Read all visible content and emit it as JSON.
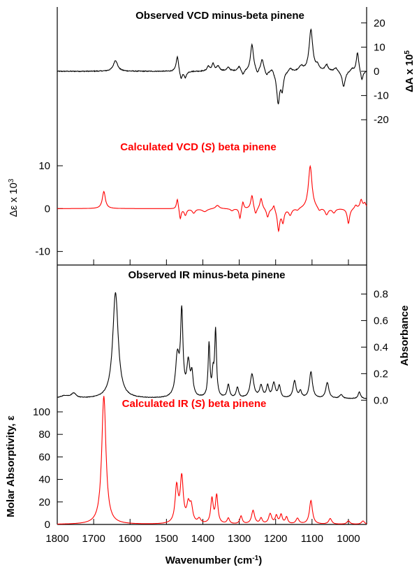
{
  "chart_data": [
    {
      "id": "vcd-observed",
      "type": "line",
      "title": "Observed VCD minus-beta pinene",
      "ylabel": "ΔA x 10⁵",
      "ylabel_parts": {
        "main": "ΔA x 10",
        "sup": "5"
      },
      "ylabel_side": "right",
      "xlim": [
        1800,
        950
      ],
      "ylim": [
        -26,
        26
      ],
      "yticks": [
        20,
        10,
        0,
        -10,
        -20
      ],
      "color": "#000000",
      "baseline": 0,
      "noise": 0.35,
      "x_smooth_peaks": [
        {
          "x": 1640,
          "y": 4.5,
          "w": 7
        },
        {
          "x": 1470,
          "y": 6.5,
          "w": 4
        },
        {
          "x": 1460,
          "y": -3.5,
          "w": 4
        },
        {
          "x": 1448,
          "y": -2.5,
          "w": 4
        },
        {
          "x": 1385,
          "y": 2,
          "w": 4
        },
        {
          "x": 1372,
          "y": 3,
          "w": 4
        },
        {
          "x": 1358,
          "y": 2,
          "w": 5
        },
        {
          "x": 1330,
          "y": 1.5,
          "w": 5
        },
        {
          "x": 1300,
          "y": 2,
          "w": 5
        },
        {
          "x": 1290,
          "y": -2,
          "w": 4
        },
        {
          "x": 1265,
          "y": 11,
          "w": 5
        },
        {
          "x": 1250,
          "y": -2,
          "w": 4
        },
        {
          "x": 1237,
          "y": 5,
          "w": 5
        },
        {
          "x": 1225,
          "y": -2,
          "w": 4
        },
        {
          "x": 1210,
          "y": 1.5,
          "w": 4
        },
        {
          "x": 1193,
          "y": -13,
          "w": 5
        },
        {
          "x": 1182,
          "y": -7,
          "w": 4
        },
        {
          "x": 1160,
          "y": 1.5,
          "w": 5
        },
        {
          "x": 1130,
          "y": 2,
          "w": 6
        },
        {
          "x": 1103,
          "y": 17,
          "w": 6
        },
        {
          "x": 1085,
          "y": 2,
          "w": 5
        },
        {
          "x": 1060,
          "y": 2.5,
          "w": 5
        },
        {
          "x": 1035,
          "y": 1.5,
          "w": 5
        },
        {
          "x": 1013,
          "y": -6.5,
          "w": 5
        },
        {
          "x": 990,
          "y": 1,
          "w": 5
        },
        {
          "x": 975,
          "y": 8,
          "w": 4
        },
        {
          "x": 963,
          "y": -4,
          "w": 4
        }
      ]
    },
    {
      "id": "vcd-calculated",
      "type": "line",
      "title": "Calculated VCD (S) beta pinene",
      "title_parts": {
        "pre": "Calculated VCD (",
        "italic": "S",
        "post": ") beta pinene"
      },
      "ylabel": "Δε x 10³",
      "ylabel_parts": {
        "main": "Δε x 10",
        "sup": "3"
      },
      "ylabel_side": "left",
      "xlim": [
        1800,
        950
      ],
      "ylim": [
        -13,
        18
      ],
      "yticks": [
        10,
        0,
        -10
      ],
      "color": "#ff0000",
      "baseline": 0,
      "noise": 0,
      "x_smooth_peaks": [
        {
          "x": 1672,
          "y": 4,
          "w": 5
        },
        {
          "x": 1470,
          "y": 2.5,
          "w": 3
        },
        {
          "x": 1462,
          "y": -2.5,
          "w": 3
        },
        {
          "x": 1448,
          "y": -1.5,
          "w": 4
        },
        {
          "x": 1425,
          "y": -1,
          "w": 5
        },
        {
          "x": 1395,
          "y": -0.7,
          "w": 8
        },
        {
          "x": 1360,
          "y": 0.8,
          "w": 6
        },
        {
          "x": 1320,
          "y": -0.5,
          "w": 5
        },
        {
          "x": 1298,
          "y": -2.5,
          "w": 3
        },
        {
          "x": 1290,
          "y": 1.8,
          "w": 3
        },
        {
          "x": 1265,
          "y": 3.2,
          "w": 4
        },
        {
          "x": 1255,
          "y": -1.6,
          "w": 4
        },
        {
          "x": 1240,
          "y": 2.5,
          "w": 4
        },
        {
          "x": 1222,
          "y": -2,
          "w": 4
        },
        {
          "x": 1205,
          "y": 1.2,
          "w": 3
        },
        {
          "x": 1192,
          "y": -5,
          "w": 4
        },
        {
          "x": 1180,
          "y": -3,
          "w": 4
        },
        {
          "x": 1160,
          "y": -1.5,
          "w": 5
        },
        {
          "x": 1140,
          "y": -0.5,
          "w": 5
        },
        {
          "x": 1105,
          "y": 10,
          "w": 6
        },
        {
          "x": 1080,
          "y": -0.8,
          "w": 5
        },
        {
          "x": 1060,
          "y": -1.5,
          "w": 5
        },
        {
          "x": 1040,
          "y": -1,
          "w": 5
        },
        {
          "x": 1000,
          "y": -3.5,
          "w": 4
        },
        {
          "x": 980,
          "y": 0.8,
          "w": 4
        },
        {
          "x": 965,
          "y": 2,
          "w": 4
        },
        {
          "x": 955,
          "y": 1.2,
          "w": 4
        }
      ]
    },
    {
      "id": "ir-observed",
      "type": "line",
      "title": "Observed IR minus-beta pinene",
      "ylabel": "Absorbance",
      "ylabel_side": "right",
      "xlim": [
        1800,
        950
      ],
      "ylim": [
        -0.03,
        0.95
      ],
      "yticks": [
        0.8,
        0.6,
        0.4,
        0.2,
        0.0
      ],
      "ytick_labels": [
        "0.8",
        "0.6",
        "0.4",
        "0.2",
        "0.0"
      ],
      "color": "#000000",
      "baseline": 0.01,
      "noise": 0.004,
      "x_smooth_peaks": [
        {
          "x": 1780,
          "y": 0.02,
          "w": 15
        },
        {
          "x": 1755,
          "y": 0.035,
          "w": 8
        },
        {
          "x": 1640,
          "y": 0.8,
          "w": 9
        },
        {
          "x": 1470,
          "y": 0.3,
          "w": 6
        },
        {
          "x": 1458,
          "y": 0.62,
          "w": 4
        },
        {
          "x": 1440,
          "y": 0.25,
          "w": 5
        },
        {
          "x": 1430,
          "y": 0.16,
          "w": 4
        },
        {
          "x": 1383,
          "y": 0.4,
          "w": 3
        },
        {
          "x": 1372,
          "y": 0.16,
          "w": 3
        },
        {
          "x": 1365,
          "y": 0.5,
          "w": 3
        },
        {
          "x": 1330,
          "y": 0.1,
          "w": 4
        },
        {
          "x": 1305,
          "y": 0.08,
          "w": 4
        },
        {
          "x": 1265,
          "y": 0.18,
          "w": 6
        },
        {
          "x": 1240,
          "y": 0.09,
          "w": 5
        },
        {
          "x": 1222,
          "y": 0.09,
          "w": 4
        },
        {
          "x": 1205,
          "y": 0.11,
          "w": 5
        },
        {
          "x": 1190,
          "y": 0.09,
          "w": 4
        },
        {
          "x": 1148,
          "y": 0.13,
          "w": 5
        },
        {
          "x": 1132,
          "y": 0.05,
          "w": 4
        },
        {
          "x": 1103,
          "y": 0.2,
          "w": 5
        },
        {
          "x": 1058,
          "y": 0.12,
          "w": 5
        },
        {
          "x": 1020,
          "y": 0.03,
          "w": 5
        },
        {
          "x": 970,
          "y": 0.05,
          "w": 4
        }
      ]
    },
    {
      "id": "ir-calculated",
      "type": "line",
      "title": "Calculated IR (S) beta pinene",
      "title_parts": {
        "pre": "Calculated IR (",
        "italic": "S",
        "post": ") beta pinene"
      },
      "ylabel": "Molar Absorptivity, ε",
      "ylabel_side": "left",
      "xlabel": "Wavenumber (cm⁻¹)",
      "xlabel_parts": {
        "main": "Wavenumber (cm",
        "sup": "-1",
        "post": ")"
      },
      "xlim": [
        1800,
        950
      ],
      "xticks": [
        1800,
        1700,
        1600,
        1500,
        1400,
        1300,
        1200,
        1100,
        1000
      ],
      "ylim": [
        0,
        118
      ],
      "yticks": [
        100,
        80,
        60,
        40,
        20,
        0
      ],
      "color": "#ff0000",
      "baseline": 0,
      "noise": 0,
      "x_smooth_peaks": [
        {
          "x": 1672,
          "y": 114,
          "w": 7
        },
        {
          "x": 1472,
          "y": 32,
          "w": 5
        },
        {
          "x": 1458,
          "y": 40,
          "w": 5
        },
        {
          "x": 1440,
          "y": 15,
          "w": 5
        },
        {
          "x": 1432,
          "y": 14,
          "w": 5
        },
        {
          "x": 1410,
          "y": 4,
          "w": 5
        },
        {
          "x": 1375,
          "y": 22,
          "w": 4
        },
        {
          "x": 1362,
          "y": 25,
          "w": 4
        },
        {
          "x": 1330,
          "y": 5,
          "w": 4
        },
        {
          "x": 1295,
          "y": 7,
          "w": 4
        },
        {
          "x": 1262,
          "y": 12,
          "w": 5
        },
        {
          "x": 1240,
          "y": 5,
          "w": 4
        },
        {
          "x": 1215,
          "y": 9,
          "w": 5
        },
        {
          "x": 1198,
          "y": 7,
          "w": 4
        },
        {
          "x": 1185,
          "y": 8,
          "w": 4
        },
        {
          "x": 1170,
          "y": 6,
          "w": 4
        },
        {
          "x": 1140,
          "y": 5,
          "w": 5
        },
        {
          "x": 1103,
          "y": 21,
          "w": 5
        },
        {
          "x": 1050,
          "y": 5,
          "w": 5
        },
        {
          "x": 1000,
          "y": 3,
          "w": 5
        },
        {
          "x": 960,
          "y": 3,
          "w": 5
        }
      ]
    }
  ]
}
